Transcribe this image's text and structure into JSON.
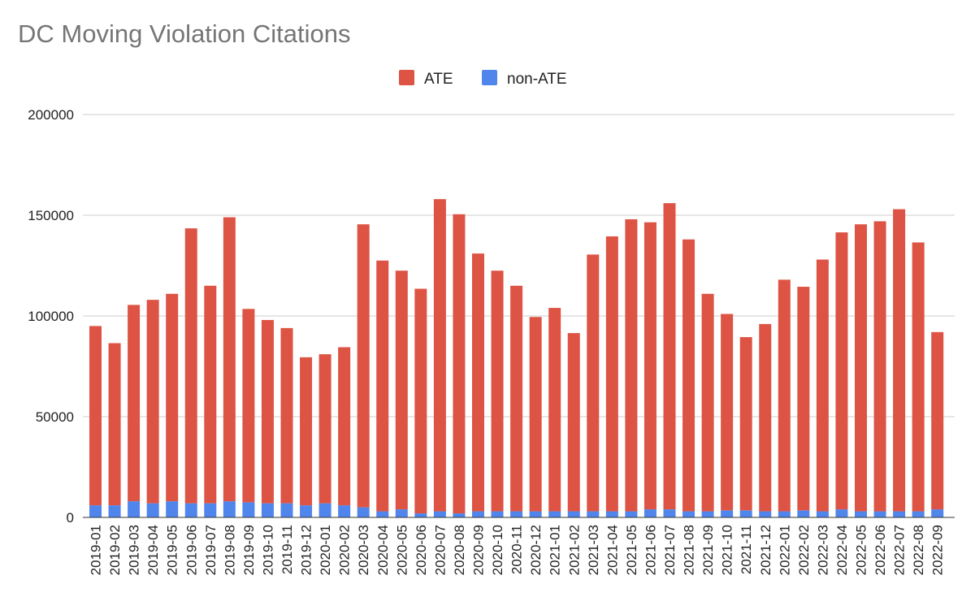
{
  "chart_data": {
    "type": "bar",
    "stacked": true,
    "title": "DC Moving Violation Citations",
    "xlabel": "",
    "ylabel": "",
    "ylim": [
      0,
      200000
    ],
    "yticks": [
      "0",
      "50000",
      "100000",
      "150000",
      "200000"
    ],
    "grid": true,
    "legend_position": "top-center",
    "categories": [
      "2019-01",
      "2019-02",
      "2019-03",
      "2019-04",
      "2019-05",
      "2019-06",
      "2019-07",
      "2019-08",
      "2019-09",
      "2019-10",
      "2019-11",
      "2019-12",
      "2020-01",
      "2020-02",
      "2020-03",
      "2020-04",
      "2020-05",
      "2020-06",
      "2020-07",
      "2020-08",
      "2020-09",
      "2020-10",
      "2020-11",
      "2020-12",
      "2021-01",
      "2021-02",
      "2021-03",
      "2021-04",
      "2021-05",
      "2021-06",
      "2021-07",
      "2021-08",
      "2021-09",
      "2021-10",
      "2021-11",
      "2021-12",
      "2022-01",
      "2022-02",
      "2022-03",
      "2022-04",
      "2022-05",
      "2022-06",
      "2022-07",
      "2022-08",
      "2022-09"
    ],
    "series": [
      {
        "name": "non-ATE",
        "color": "#5086ec",
        "values": [
          6000,
          6000,
          8000,
          7000,
          8000,
          7000,
          7000,
          8000,
          7500,
          7000,
          7000,
          6000,
          7000,
          6000,
          5000,
          3000,
          4000,
          2000,
          3000,
          2000,
          3000,
          3000,
          3000,
          3000,
          3000,
          3000,
          3000,
          3000,
          3000,
          4000,
          4000,
          3000,
          3000,
          3500,
          3500,
          3000,
          3000,
          3500,
          3000,
          4000,
          3000,
          3000,
          3000,
          3000,
          4000
        ]
      },
      {
        "name": "ATE",
        "color": "#dd5444",
        "values": [
          89000,
          80500,
          97500,
          101000,
          103000,
          136500,
          108000,
          141000,
          96000,
          91000,
          87000,
          73500,
          74000,
          78500,
          140500,
          124500,
          118500,
          111500,
          155000,
          148500,
          128000,
          119500,
          112000,
          96500,
          101000,
          88500,
          127500,
          136500,
          145000,
          142500,
          152000,
          135000,
          108000,
          97500,
          86000,
          93000,
          115000,
          111000,
          125000,
          137500,
          142500,
          144000,
          150000,
          133500,
          88000
        ]
      }
    ]
  }
}
